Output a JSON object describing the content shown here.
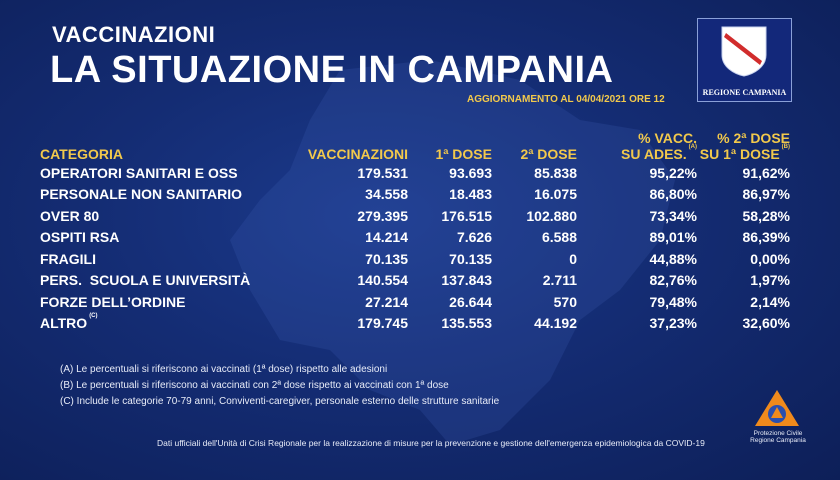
{
  "header": {
    "kicker": "VACCINAZIONI",
    "title": "LA SITUAZIONE IN CAMPANIA",
    "update": "AGGIORNAMENTO AL 04/04/2021 ORE 12",
    "logo_label": "REGIONE CAMPANIA"
  },
  "table": {
    "headers": {
      "categoria": "CATEGORIA",
      "vaccinazioni": "VACCINAZIONI",
      "dose1": "1ª DOSE",
      "dose2": "2ª DOSE",
      "perc_vacc_line1": "% VACC.",
      "perc_vacc_line2": "SU ADES.",
      "perc_vacc_note": "(A)",
      "perc_2dose_line1": "% 2ª DOSE",
      "perc_2dose_line2": "SU 1ª DOSE",
      "perc_2dose_note": "(B)"
    },
    "rows": [
      {
        "categoria": "OPERATORI SANITARI E OSS",
        "note": "",
        "vaccinazioni": "179.531",
        "dose1": "93.693",
        "dose2": "85.838",
        "perc_vacc": "95,22%",
        "perc_2dose": "91,62%"
      },
      {
        "categoria": "PERSONALE NON SANITARIO",
        "note": "",
        "vaccinazioni": "34.558",
        "dose1": "18.483",
        "dose2": "16.075",
        "perc_vacc": "86,80%",
        "perc_2dose": "86,97%"
      },
      {
        "categoria": "OVER 80",
        "note": "",
        "vaccinazioni": "279.395",
        "dose1": "176.515",
        "dose2": "102.880",
        "perc_vacc": "73,34%",
        "perc_2dose": "58,28%"
      },
      {
        "categoria": "OSPITI RSA",
        "note": "",
        "vaccinazioni": "14.214",
        "dose1": "7.626",
        "dose2": "6.588",
        "perc_vacc": "89,01%",
        "perc_2dose": "86,39%"
      },
      {
        "categoria": "FRAGILI",
        "note": "",
        "vaccinazioni": "70.135",
        "dose1": "70.135",
        "dose2": "0",
        "perc_vacc": "44,88%",
        "perc_2dose": "0,00%"
      },
      {
        "categoria": "PERS.  SCUOLA E UNIVERSITÀ",
        "note": "",
        "vaccinazioni": "140.554",
        "dose1": "137.843",
        "dose2": "2.711",
        "perc_vacc": "82,76%",
        "perc_2dose": "1,97%"
      },
      {
        "categoria": "FORZE DELL’ORDINE",
        "note": "",
        "vaccinazioni": "27.214",
        "dose1": "26.644",
        "dose2": "570",
        "perc_vacc": "79,48%",
        "perc_2dose": "2,14%"
      },
      {
        "categoria": "ALTRO",
        "note": "(C)",
        "vaccinazioni": "179.745",
        "dose1": "135.553",
        "dose2": "44.192",
        "perc_vacc": "37,23%",
        "perc_2dose": "32,60%"
      }
    ]
  },
  "notes": [
    "(A) Le percentuali si riferiscono ai vaccinati (1ª dose) rispetto alle adesioni",
    "(B) Le percentuali si riferiscono ai vaccinati con 2ª dose rispetto ai vaccinati con 1ª dose",
    "(C) Include le categorie 70-79 anni, Conviventi-caregiver, personale esterno delle strutture sanitarie"
  ],
  "footer": "Dati ufficiali dell'Unità di Crisi Regionale per la realizzazione di misure per la prevenzione e gestione dell'emergenza epidemiologica da COVID-19",
  "protezione_civile": {
    "line1": "Protezione Civile",
    "line2": "Regione Campania"
  },
  "colors": {
    "background": "#142c73",
    "accent": "#f2c94c",
    "text": "#ffffff",
    "logo_red": "#d12c2c",
    "logo_orange": "#f08a1c"
  }
}
